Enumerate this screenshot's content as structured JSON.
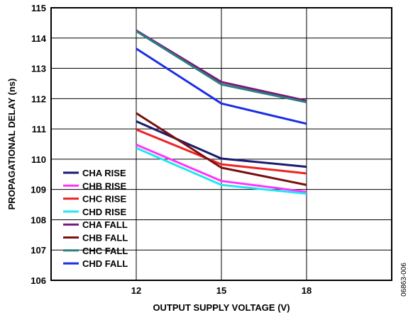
{
  "chart_data": {
    "type": "line",
    "xlabel": "OUTPUT SUPPLY VOLTAGE (V)",
    "ylabel": "PROPAGATIONAL DELAY (ns)",
    "x": [
      12,
      15,
      18
    ],
    "xlim": [
      9,
      21
    ],
    "ylim": [
      106,
      115
    ],
    "yticks": [
      106,
      107,
      108,
      109,
      110,
      111,
      112,
      113,
      114,
      115
    ],
    "grid": true,
    "legend_position": "bottom-left",
    "series": [
      {
        "name": "CHA RISE",
        "color": "#1a1a6e",
        "values": [
          111.25,
          110.02,
          109.75
        ]
      },
      {
        "name": "CHB RISE",
        "color": "#ff33ff",
        "values": [
          110.48,
          109.28,
          108.92
        ]
      },
      {
        "name": "CHC RISE",
        "color": "#ee2222",
        "values": [
          110.98,
          109.83,
          109.53
        ]
      },
      {
        "name": "CHD RISE",
        "color": "#22e6f0",
        "values": [
          110.37,
          109.15,
          108.86
        ]
      },
      {
        "name": "CHA FALL",
        "color": "#7a1a7a",
        "values": [
          114.25,
          112.55,
          111.93
        ]
      },
      {
        "name": "CHB FALL",
        "color": "#7a0f0f",
        "values": [
          111.52,
          109.72,
          109.15
        ]
      },
      {
        "name": "CHC FALL",
        "color": "#2a7f7f",
        "values": [
          114.23,
          112.47,
          111.88
        ]
      },
      {
        "name": "CHD FALL",
        "color": "#1a2ee6",
        "values": [
          113.65,
          111.84,
          111.17
        ]
      }
    ]
  },
  "figure_id": "06863-006"
}
